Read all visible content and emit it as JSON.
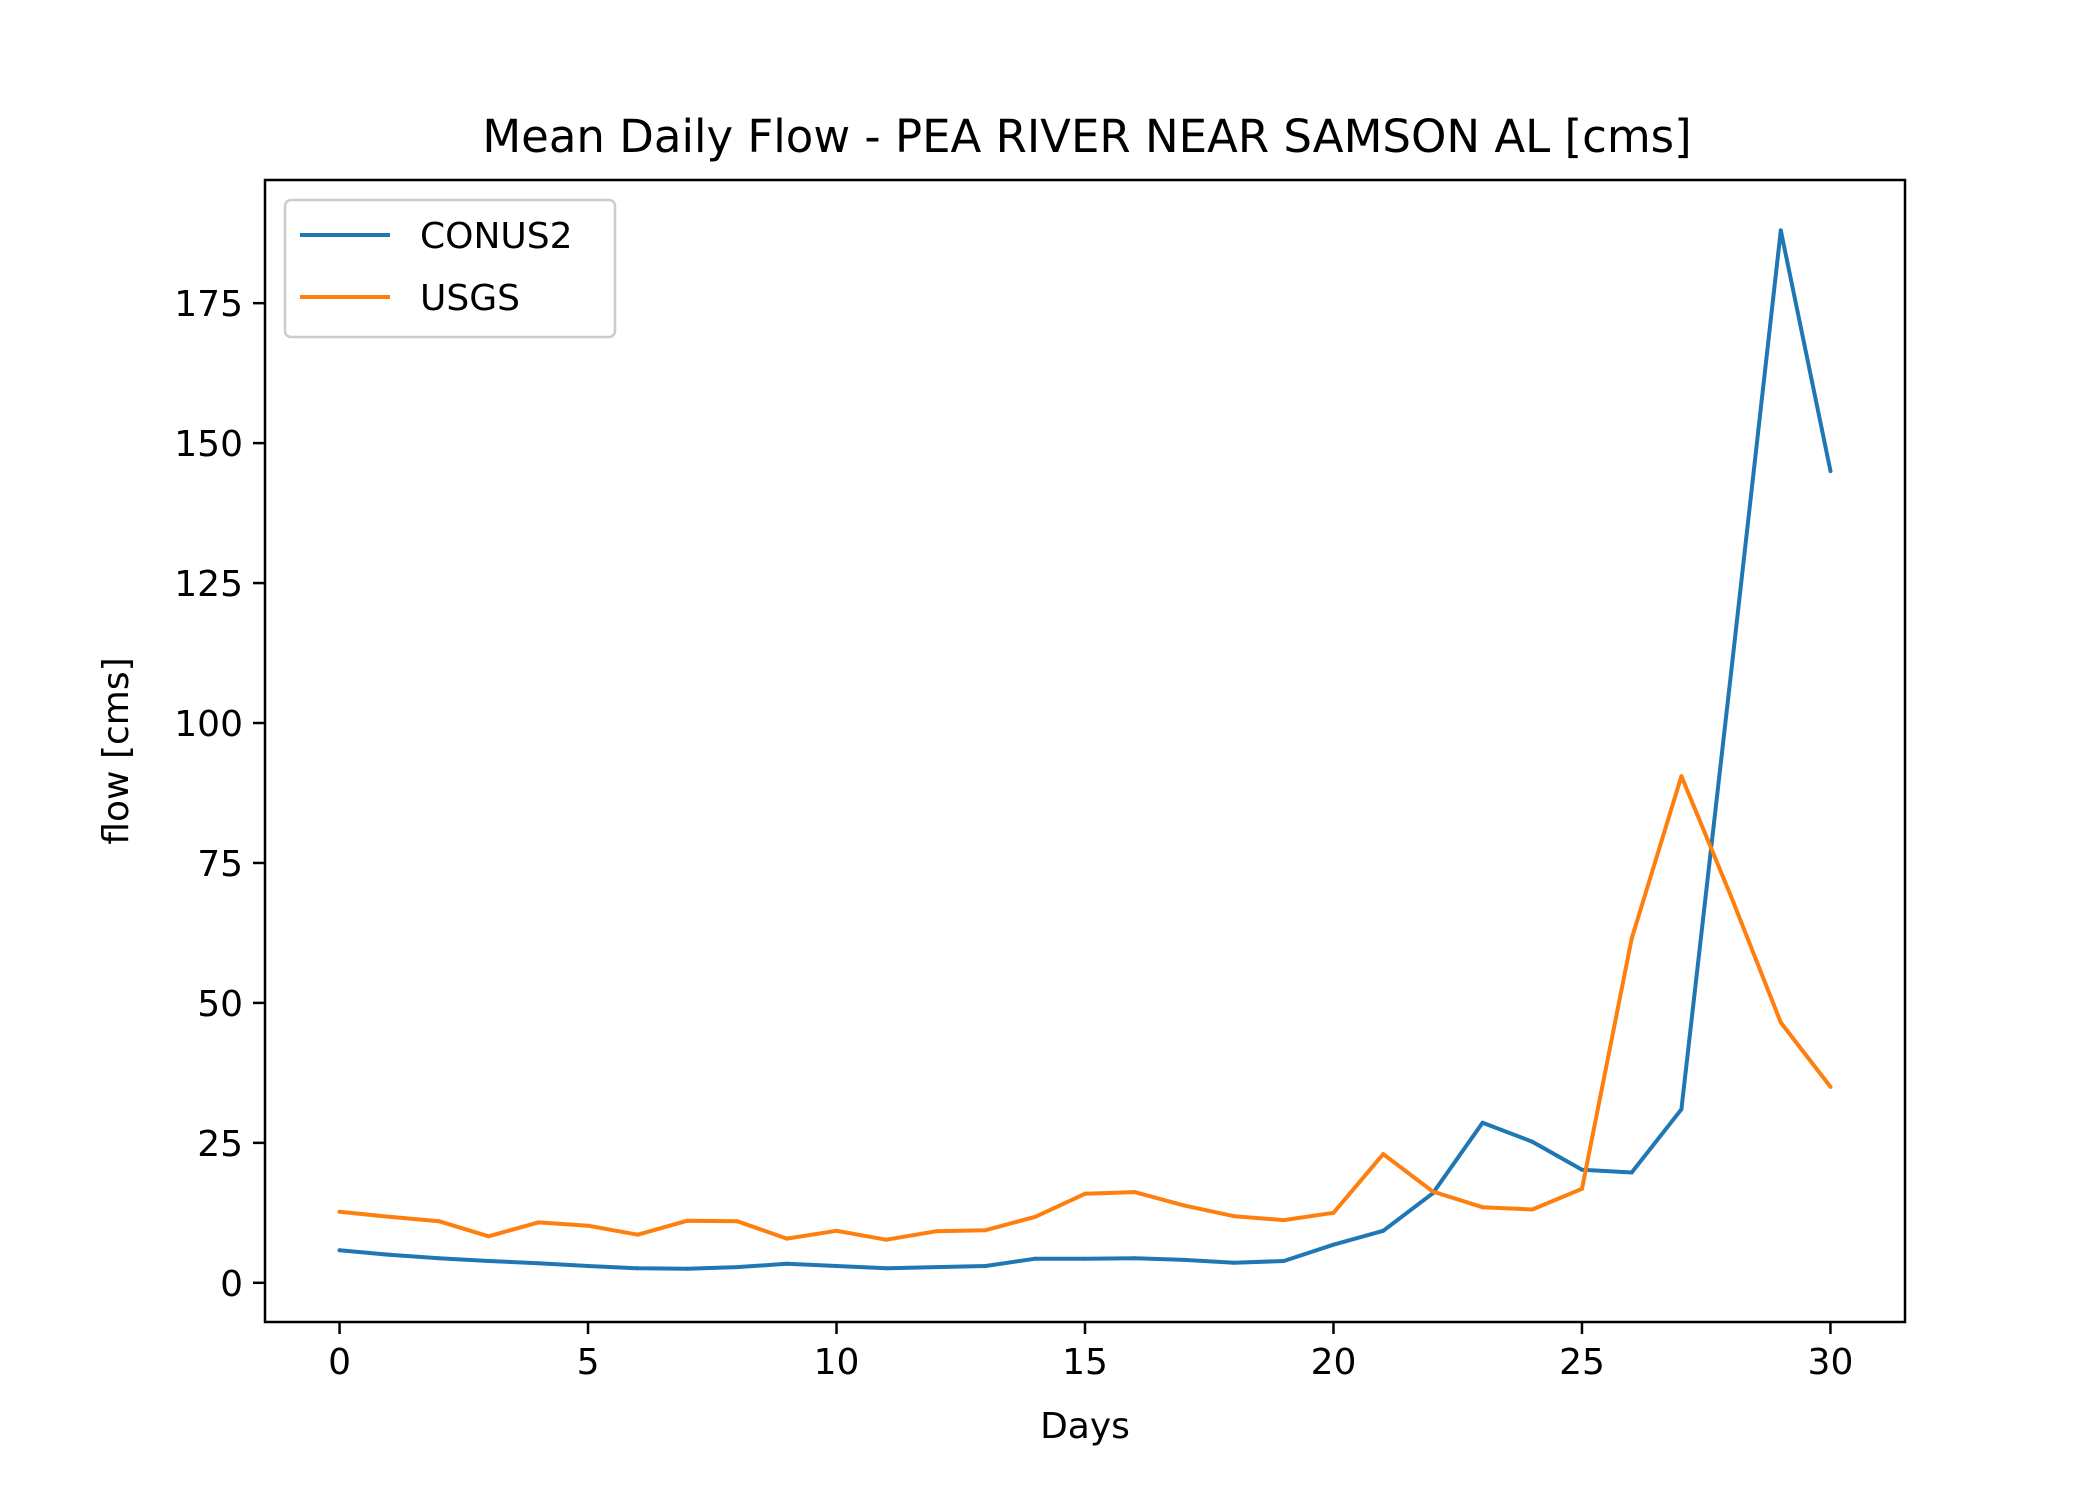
{
  "chart_data": {
    "type": "line",
    "title": "Mean Daily Flow - PEA RIVER NEAR SAMSON AL [cms]",
    "xlabel": "Days",
    "ylabel": "flow [cms]",
    "xlim": [
      -1.5,
      31.5
    ],
    "ylim": [
      -7,
      197
    ],
    "xticks": [
      0,
      5,
      10,
      15,
      20,
      25,
      30
    ],
    "yticks": [
      0,
      25,
      50,
      75,
      100,
      125,
      150,
      175
    ],
    "grid": false,
    "legend_position": "top-left",
    "x": [
      0,
      1,
      2,
      3,
      4,
      5,
      6,
      7,
      8,
      9,
      10,
      11,
      12,
      13,
      14,
      15,
      16,
      17,
      18,
      19,
      20,
      21,
      22,
      23,
      24,
      25,
      26,
      27,
      28,
      29,
      30
    ],
    "series": [
      {
        "name": "CONUS2",
        "color": "#1f77b4",
        "values": [
          5.8,
          5.0,
          4.4,
          3.9,
          3.5,
          3.0,
          2.6,
          2.5,
          2.8,
          3.4,
          3.0,
          2.6,
          2.8,
          3.0,
          4.3,
          4.3,
          4.4,
          4.1,
          3.6,
          3.9,
          6.8,
          9.3,
          16.0,
          28.6,
          25.2,
          20.2,
          19.7,
          31.0,
          109.0,
          188.0,
          145.0
        ]
      },
      {
        "name": "USGS",
        "color": "#ff7f0e",
        "values": [
          12.7,
          11.8,
          11.0,
          8.3,
          10.8,
          10.2,
          8.6,
          11.1,
          11.0,
          7.9,
          9.3,
          7.7,
          9.2,
          9.4,
          11.8,
          15.9,
          16.2,
          13.8,
          11.9,
          11.2,
          12.5,
          23.0,
          16.3,
          13.5,
          13.1,
          16.8,
          61.5,
          90.5,
          69.0,
          46.5,
          35.0
        ]
      }
    ]
  }
}
